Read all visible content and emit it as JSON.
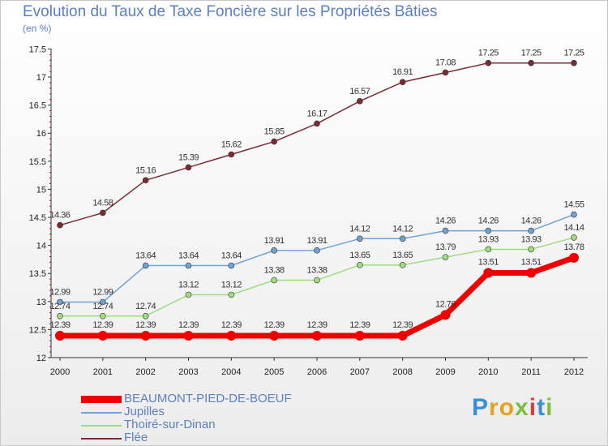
{
  "title": "Evolution du Taux de Taxe Foncière sur les Propriétés Bâties",
  "unit_label": "(en %)",
  "logo_text": "Proxiti",
  "chart_data": {
    "type": "line",
    "title": "Evolution du Taux de Taxe Foncière sur les Propriétés Bâties",
    "ylabel": "(en %)",
    "xlabel": "",
    "x": [
      "2000",
      "2001",
      "2002",
      "2003",
      "2004",
      "2005",
      "2006",
      "2007",
      "2008",
      "2009",
      "2010",
      "2011",
      "2012"
    ],
    "ylim": [
      12,
      17.5
    ],
    "yticks": [
      "12",
      "12.5",
      "13",
      "13.5",
      "14",
      "14.5",
      "15",
      "15.5",
      "16",
      "16.5",
      "17",
      "17.5"
    ],
    "grid": false,
    "legend_position": "bottom-left",
    "series": [
      {
        "name": "BEAUMONT-PIED-DE-BOEUF",
        "color": "#ee0000",
        "values": [
          12.39,
          12.39,
          12.39,
          12.39,
          12.39,
          12.39,
          12.39,
          12.39,
          12.39,
          12.76,
          13.51,
          13.51,
          13.78
        ]
      },
      {
        "name": "Jupilles",
        "color": "#6fa3d4",
        "values": [
          12.99,
          12.99,
          13.64,
          13.64,
          13.64,
          13.91,
          13.91,
          14.12,
          14.12,
          14.26,
          14.26,
          14.26,
          14.55
        ]
      },
      {
        "name": "Thoiré-sur-Dinan",
        "color": "#9edc7d",
        "values": [
          12.74,
          12.74,
          12.74,
          13.12,
          13.12,
          13.38,
          13.38,
          13.65,
          13.65,
          13.79,
          13.93,
          13.93,
          14.14
        ]
      },
      {
        "name": "Flée",
        "color": "#7a2b33",
        "values": [
          14.36,
          14.58,
          15.16,
          15.39,
          15.62,
          15.85,
          16.17,
          16.57,
          16.91,
          17.08,
          17.25,
          17.25,
          17.25
        ]
      }
    ]
  }
}
